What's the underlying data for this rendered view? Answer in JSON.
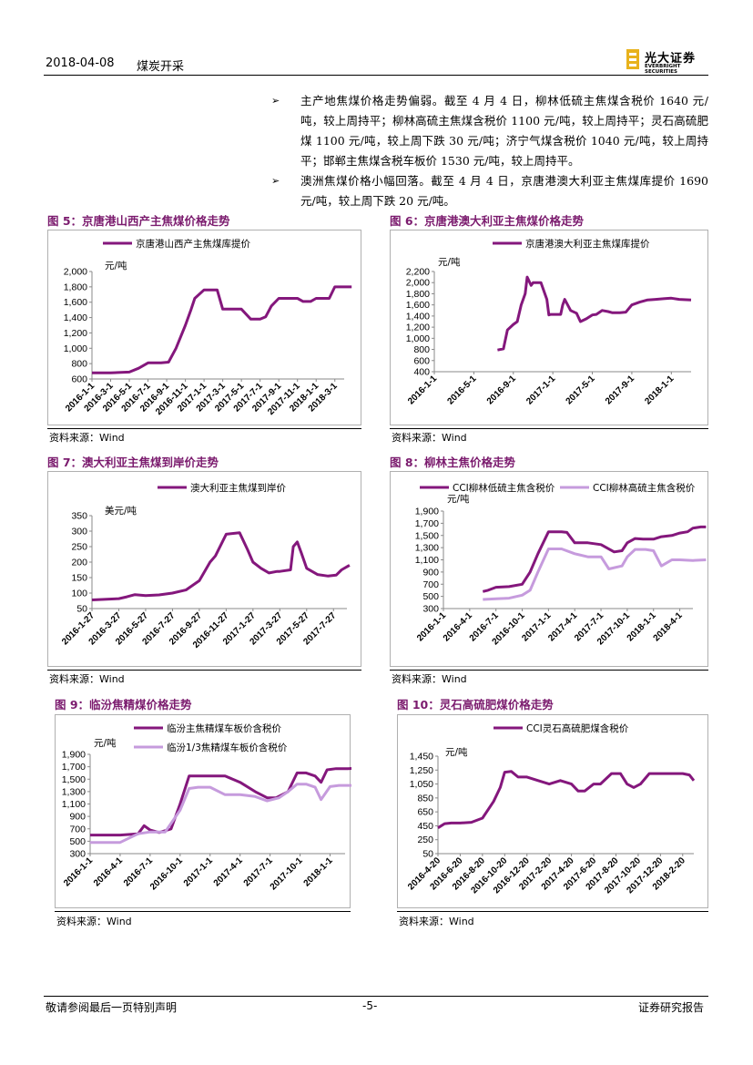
{
  "header": {
    "date": "2018-04-08",
    "sector": "煤炭开采",
    "logo_cn": "光大证券",
    "logo_en": "EVERBRIGHT SECURITIES"
  },
  "bullets": [
    "主产地焦煤价格走势偏弱。截至 4 月 4 日，柳林低硫主焦煤含税价 1640 元/吨，较上周持平；柳林高硫主焦煤含税价 1100 元/吨，较上周持平；灵石高硫肥煤 1100 元/吨，较上周下跌 30 元/吨；济宁气煤含税价 1040 元/吨，较上周持平；邯郸主焦煤含税车板价 1530 元/吨，较上周持平。",
    "澳洲焦煤价格小幅回落。截至 4 月 4 日，京唐港澳大利亚主焦煤库提价 1690 元/吨，较上周下跌 20 元/吨。"
  ],
  "footer": {
    "left": "敬请参阅最后一页特别声明",
    "center": "-5-",
    "right": "证券研究报告"
  },
  "colors": {
    "series1": "#84177c",
    "series2": "#c69bdd",
    "title": "#7b1b6e"
  },
  "chart_data": [
    {
      "type": "line",
      "title": "图 5：京唐港山西产主焦煤价格走势",
      "ylabel": "元/吨",
      "source": "资料来源：Wind",
      "ylim": [
        600,
        2000
      ],
      "yticks": [
        "600",
        "800",
        "1,000",
        "1,200",
        "1,400",
        "1,600",
        "1,800",
        "2,000"
      ],
      "xticks": [
        "2016-1-1",
        "2016-3-1",
        "2016-5-1",
        "2016-7-1",
        "2016-9-1",
        "2016-11-1",
        "2017-1-1",
        "2017-3-1",
        "2017-5-1",
        "2017-7-1",
        "2017-9-1",
        "2017-11-1",
        "2018-1-1",
        "2018-3-1"
      ],
      "series": [
        {
          "name": "京唐港山西产主焦煤库提价",
          "x": [
            0,
            1,
            2,
            2.5,
            3,
            3.4,
            3.7,
            4.1,
            4.5,
            5,
            5.3,
            5.5,
            6,
            6.3,
            6.7,
            7,
            7.5,
            8,
            8.5,
            9,
            9.3,
            9.6,
            10,
            10.5,
            11,
            11.3,
            11.7,
            12,
            12.3,
            12.7,
            13,
            13.5,
            13.9
          ],
          "values": [
            680,
            680,
            690,
            740,
            810,
            810,
            810,
            820,
            1000,
            1300,
            1500,
            1650,
            1760,
            1760,
            1760,
            1510,
            1510,
            1510,
            1380,
            1380,
            1410,
            1550,
            1650,
            1650,
            1650,
            1610,
            1610,
            1650,
            1650,
            1650,
            1800,
            1800,
            1800
          ]
        }
      ]
    },
    {
      "type": "line",
      "title": "图 6：京唐港澳大利亚主焦煤价格走势",
      "ylabel": "元/吨",
      "source": "资料来源：Wind",
      "ylim": [
        400,
        2200
      ],
      "yticks": [
        "400",
        "600",
        "800",
        "1,000",
        "1,200",
        "1,400",
        "1,600",
        "1,800",
        "2,000",
        "2,200"
      ],
      "xticks": [
        "2016-1-1",
        "2016-5-1",
        "2016-9-1",
        "2017-1-1",
        "2017-5-1",
        "2017-9-1",
        "2018-1-1"
      ],
      "series": [
        {
          "name": "京唐港澳大利亚主焦煤库提价",
          "x": [
            1.6,
            1.75,
            1.85,
            2.0,
            2.1,
            2.2,
            2.3,
            2.35,
            2.45,
            2.5,
            2.7,
            2.85,
            2.9,
            2.95,
            3.1,
            3.2,
            3.25,
            3.3,
            3.45,
            3.6,
            3.7,
            3.85,
            4.0,
            4.1,
            4.25,
            4.4,
            4.5,
            4.7,
            4.85,
            5.0,
            5.2,
            5.4,
            5.6,
            5.8,
            6.0,
            6.2,
            6.5
          ],
          "values": [
            790,
            810,
            1150,
            1250,
            1300,
            1600,
            1800,
            2100,
            1950,
            2000,
            2000,
            1700,
            1420,
            1430,
            1430,
            1430,
            1600,
            1700,
            1500,
            1450,
            1300,
            1350,
            1420,
            1430,
            1500,
            1480,
            1460,
            1460,
            1470,
            1600,
            1650,
            1690,
            1700,
            1710,
            1720,
            1700,
            1690
          ]
        }
      ]
    },
    {
      "type": "line",
      "title": "图 7：澳大利亚主焦煤到岸价走势",
      "ylabel": "美元/吨",
      "source": "资料来源：Wind",
      "ylim": [
        50,
        350
      ],
      "yticks": [
        "50",
        "100",
        "150",
        "200",
        "250",
        "300",
        "350"
      ],
      "xticks": [
        "2016-1-27",
        "2016-3-27",
        "2016-5-27",
        "2016-7-27",
        "2016-9-27",
        "2016-11-27",
        "2017-1-27",
        "2017-3-27",
        "2017-5-27",
        "2017-7-27"
      ],
      "series": [
        {
          "name": "澳大利亚主焦煤到岸价",
          "x": [
            0,
            1,
            1.3,
            1.6,
            2,
            2.5,
            3,
            3.5,
            4,
            4.4,
            4.6,
            5,
            5.5,
            5.8,
            6.0,
            6.3,
            6.6,
            6.9,
            7.0,
            7.4,
            7.5,
            7.65,
            7.8,
            8,
            8.4,
            8.8,
            9.1,
            9.3,
            9.6
          ],
          "values": [
            78,
            82,
            88,
            95,
            92,
            94,
            100,
            110,
            140,
            200,
            220,
            290,
            295,
            240,
            200,
            180,
            165,
            170,
            170,
            175,
            250,
            265,
            230,
            180,
            160,
            155,
            158,
            175,
            190
          ]
        }
      ]
    },
    {
      "type": "line",
      "title": "图 8：柳林主焦价格走势",
      "ylabel": "元/吨",
      "source": "资料来源：Wind",
      "ylim": [
        300,
        1900
      ],
      "yticks": [
        "300",
        "500",
        "700",
        "900",
        "1,100",
        "1,300",
        "1,500",
        "1,700",
        "1,900"
      ],
      "xticks": [
        "2016-1-1",
        "2016-4-1",
        "2016-7-1",
        "2016-10-1",
        "2017-1-1",
        "2017-4-1",
        "2017-7-1",
        "2017-10-1",
        "2018-1-1",
        "2018-4-1"
      ],
      "series": [
        {
          "name": "CCI柳林低硫主焦含税价",
          "x": [
            1.5,
            1.7,
            2,
            2.5,
            3,
            3.3,
            3.6,
            4,
            4.5,
            4.7,
            5,
            5.5,
            6,
            6.5,
            6.8,
            7,
            7.3,
            7.6,
            8,
            8.3,
            8.7,
            9,
            9.3,
            9.5,
            9.8,
            10
          ],
          "values": [
            580,
            600,
            650,
            660,
            700,
            900,
            1200,
            1560,
            1560,
            1550,
            1380,
            1380,
            1350,
            1230,
            1250,
            1380,
            1450,
            1440,
            1440,
            1480,
            1500,
            1540,
            1560,
            1620,
            1640,
            1640
          ]
        },
        {
          "name": "CCI柳林高硫主焦含税价",
          "x": [
            1.5,
            2,
            2.5,
            3,
            3.3,
            3.6,
            4,
            4.5,
            5,
            5.5,
            6,
            6.3,
            6.8,
            7,
            7.3,
            7.7,
            8,
            8.3,
            8.7,
            9,
            9.5,
            10
          ],
          "values": [
            450,
            460,
            470,
            520,
            600,
            900,
            1280,
            1280,
            1200,
            1150,
            1150,
            950,
            1000,
            1150,
            1270,
            1270,
            1250,
            1000,
            1100,
            1100,
            1090,
            1100
          ]
        }
      ]
    },
    {
      "type": "line",
      "title": "图 9：临汾焦精煤价格走势",
      "ylabel": "元/吨",
      "source": "资料来源：Wind",
      "ylim": [
        300,
        1900
      ],
      "yticks": [
        "300",
        "500",
        "700",
        "900",
        "1,100",
        "1,300",
        "1,500",
        "1,700",
        "1,900"
      ],
      "xticks": [
        "2016-1-1",
        "2016-4-1",
        "2016-7-1",
        "2016-10-1",
        "2017-1-1",
        "2017-4-1",
        "2017-7-1",
        "2017-10-1",
        "2018-1-1"
      ],
      "series": [
        {
          "name": "临汾主焦精煤车板价含税价",
          "x": [
            0,
            1,
            1.6,
            1.8,
            2,
            2.3,
            2.7,
            3,
            3.3,
            3.6,
            4,
            4.5,
            5,
            5.5,
            5.9,
            6.2,
            6.6,
            6.9,
            7.2,
            7.5,
            7.7,
            7.9,
            8.2,
            8.6,
            9,
            9.2,
            9.3
          ],
          "values": [
            600,
            600,
            620,
            750,
            680,
            640,
            700,
            1100,
            1550,
            1550,
            1550,
            1550,
            1450,
            1300,
            1200,
            1200,
            1300,
            1600,
            1600,
            1550,
            1450,
            1650,
            1670,
            1670,
            1680,
            1700,
            1650
          ]
        },
        {
          "name": "临汾1/3焦精煤车板价含税价",
          "x": [
            0,
            1,
            1.6,
            2,
            2.5,
            3,
            3.3,
            3.6,
            4,
            4.5,
            5,
            5.5,
            5.9,
            6.3,
            6.6,
            6.9,
            7.2,
            7.5,
            7.7,
            8,
            8.3,
            8.6,
            9,
            9.2,
            9.3
          ],
          "values": [
            480,
            480,
            620,
            650,
            650,
            1000,
            1350,
            1370,
            1370,
            1250,
            1250,
            1220,
            1150,
            1200,
            1300,
            1420,
            1420,
            1370,
            1170,
            1380,
            1400,
            1400,
            1400,
            1450,
            1400
          ]
        }
      ]
    },
    {
      "type": "line",
      "title": "图 10：灵石高硫肥煤价格走势",
      "ylabel": "元/吨",
      "source": "资料来源：Wind",
      "ylim": [
        50,
        1450
      ],
      "yticks": [
        "50",
        "250",
        "450",
        "650",
        "850",
        "1,050",
        "1,250",
        "1,450"
      ],
      "xticks": [
        "2016-4-20",
        "2016-6-20",
        "2016-8-20",
        "2016-10-20",
        "2016-12-20",
        "2017-2-20",
        "2017-4-20",
        "2017-6-20",
        "2017-8-20",
        "2017-10-20",
        "2017-12-20",
        "2018-2-20"
      ],
      "series": [
        {
          "name": "CCI灵石高硫肥煤含税价",
          "x": [
            0,
            0.3,
            0.6,
            1,
            1.5,
            2,
            2.5,
            2.8,
            3,
            3.3,
            3.6,
            4,
            4.5,
            5,
            5.5,
            6,
            6.3,
            6.6,
            7,
            7.3,
            7.8,
            8.2,
            8.5,
            8.8,
            9.1,
            9.5,
            10,
            10.5,
            11,
            11.3,
            11.5
          ],
          "values": [
            420,
            480,
            490,
            490,
            500,
            560,
            800,
            1000,
            1220,
            1230,
            1150,
            1150,
            1100,
            1050,
            1100,
            1050,
            950,
            950,
            1050,
            1050,
            1200,
            1200,
            1050,
            1000,
            1050,
            1200,
            1200,
            1200,
            1200,
            1180,
            1100
          ]
        }
      ]
    }
  ]
}
